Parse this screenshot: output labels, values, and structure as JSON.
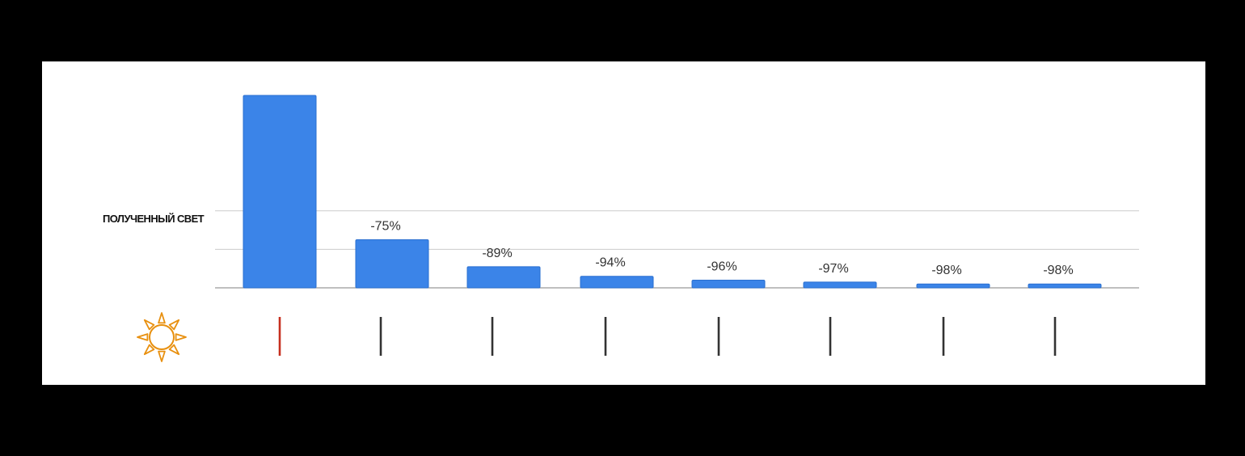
{
  "chart_data": {
    "type": "bar",
    "ylabel": "ПОЛУЧЕННЫЙ СВЕТ",
    "xlabel": "",
    "ylim": [
      0,
      100
    ],
    "grid": true,
    "values": [
      100,
      25,
      11,
      6,
      4,
      3,
      2,
      2
    ],
    "data_labels": [
      "",
      "-75%",
      "-89%",
      "-94%",
      "-96%",
      "-97%",
      "-98%",
      "-98%"
    ],
    "bar_color": "#3b84e8",
    "tick_markers": [
      "red",
      "dark",
      "dark",
      "dark",
      "dark",
      "dark",
      "dark",
      "dark"
    ],
    "tick_colors": {
      "red": "#c62f1f",
      "dark": "#333333"
    },
    "icon": "sun-icon",
    "icon_color": "#e8900f"
  }
}
